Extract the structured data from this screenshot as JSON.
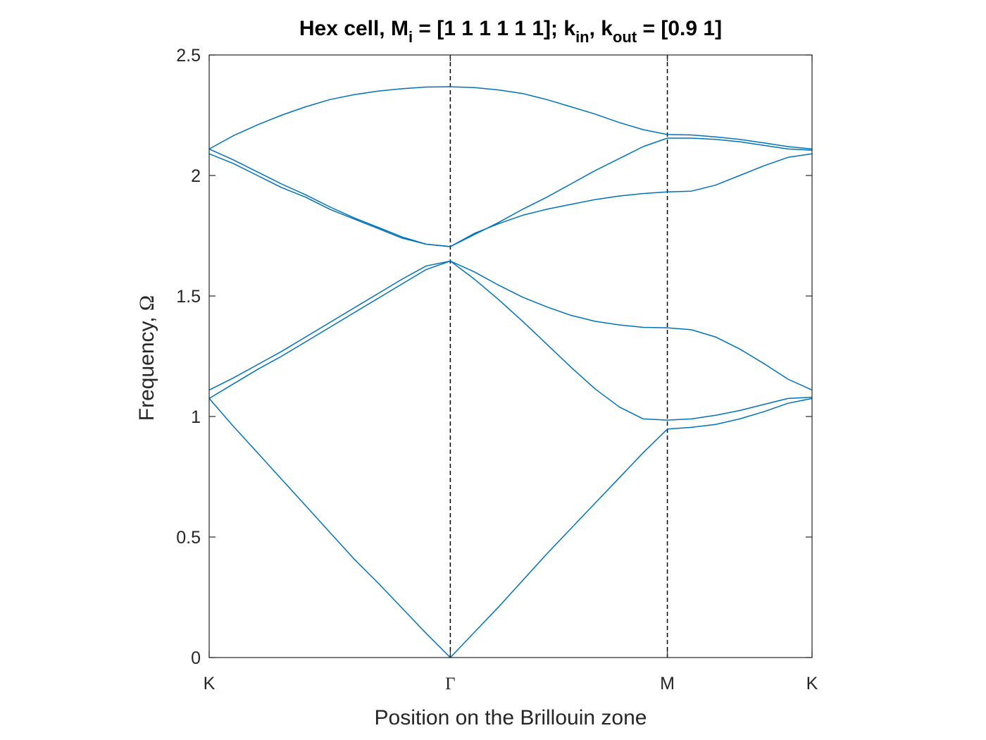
{
  "chart_data": {
    "type": "line",
    "title": {
      "main": "Hex cell, M",
      "sub_i": "i",
      "mid": " = [1 1 1 1 1 1]; k",
      "sub_in": "in",
      "comma": ", k",
      "sub_out": "out",
      "tail": " = [0.9 1]"
    },
    "xlabel": "Position on the Brillouin zone",
    "ylabel": {
      "text": "Frequency, ",
      "symbol": "Ω"
    },
    "xlim": [
      0,
      2.5
    ],
    "ylim": [
      0,
      2.5
    ],
    "yticks": [
      0,
      0.5,
      1,
      1.5,
      2,
      2.5
    ],
    "ytick_labels": [
      "0",
      "0.5",
      "1",
      "1.5",
      "2",
      "2.5"
    ],
    "xticks": [
      {
        "label": "K",
        "x": 0
      },
      {
        "label": "Γ",
        "x": 1.0
      },
      {
        "label": "M",
        "x": 1.9
      },
      {
        "label": "K",
        "x": 2.5
      }
    ],
    "vlines": [
      1.0,
      1.9
    ],
    "grid": false,
    "line_color": "#0072BD",
    "series": [
      {
        "values": [
          [
            0,
            1.075
          ],
          [
            0.1,
            0.96
          ],
          [
            0.2,
            0.85
          ],
          [
            0.3,
            0.74
          ],
          [
            0.4,
            0.63
          ],
          [
            0.5,
            0.52
          ],
          [
            0.6,
            0.41
          ],
          [
            0.7,
            0.31
          ],
          [
            0.8,
            0.205
          ],
          [
            0.9,
            0.1
          ],
          [
            1.0,
            0.0
          ],
          [
            1.1,
            0.105
          ],
          [
            1.2,
            0.21
          ],
          [
            1.3,
            0.32
          ],
          [
            1.4,
            0.43
          ],
          [
            1.5,
            0.535
          ],
          [
            1.6,
            0.64
          ],
          [
            1.7,
            0.745
          ],
          [
            1.8,
            0.85
          ],
          [
            1.9,
            0.948
          ],
          [
            2.0,
            0.955
          ],
          [
            2.1,
            0.967
          ],
          [
            2.2,
            0.99
          ],
          [
            2.3,
            1.02
          ],
          [
            2.4,
            1.055
          ],
          [
            2.5,
            1.075
          ]
        ]
      },
      {
        "values": [
          [
            0,
            1.075
          ],
          [
            0.1,
            1.135
          ],
          [
            0.2,
            1.195
          ],
          [
            0.3,
            1.25
          ],
          [
            0.4,
            1.31
          ],
          [
            0.5,
            1.37
          ],
          [
            0.6,
            1.43
          ],
          [
            0.7,
            1.49
          ],
          [
            0.8,
            1.55
          ],
          [
            0.9,
            1.61
          ],
          [
            1.0,
            1.645
          ],
          [
            1.1,
            1.57
          ],
          [
            1.2,
            1.485
          ],
          [
            1.3,
            1.395
          ],
          [
            1.4,
            1.3
          ],
          [
            1.5,
            1.205
          ],
          [
            1.6,
            1.115
          ],
          [
            1.7,
            1.04
          ],
          [
            1.8,
            0.99
          ],
          [
            1.9,
            0.985
          ],
          [
            2.0,
            0.99
          ],
          [
            2.1,
            1.005
          ],
          [
            2.2,
            1.025
          ],
          [
            2.3,
            1.05
          ],
          [
            2.4,
            1.075
          ],
          [
            2.5,
            1.08
          ]
        ]
      },
      {
        "values": [
          [
            0,
            1.11
          ],
          [
            0.1,
            1.16
          ],
          [
            0.2,
            1.215
          ],
          [
            0.3,
            1.27
          ],
          [
            0.4,
            1.33
          ],
          [
            0.5,
            1.39
          ],
          [
            0.6,
            1.45
          ],
          [
            0.7,
            1.51
          ],
          [
            0.8,
            1.57
          ],
          [
            0.9,
            1.625
          ],
          [
            1.0,
            1.645
          ],
          [
            1.1,
            1.6
          ],
          [
            1.2,
            1.545
          ],
          [
            1.3,
            1.495
          ],
          [
            1.4,
            1.455
          ],
          [
            1.5,
            1.42
          ],
          [
            1.6,
            1.395
          ],
          [
            1.7,
            1.38
          ],
          [
            1.8,
            1.37
          ],
          [
            1.9,
            1.368
          ],
          [
            2.0,
            1.36
          ],
          [
            2.1,
            1.33
          ],
          [
            2.2,
            1.28
          ],
          [
            2.3,
            1.22
          ],
          [
            2.4,
            1.155
          ],
          [
            2.5,
            1.11
          ]
        ]
      },
      {
        "values": [
          [
            0,
            2.09
          ],
          [
            0.1,
            2.05
          ],
          [
            0.2,
            2.0
          ],
          [
            0.3,
            1.95
          ],
          [
            0.4,
            1.91
          ],
          [
            0.5,
            1.86
          ],
          [
            0.6,
            1.82
          ],
          [
            0.7,
            1.78
          ],
          [
            0.8,
            1.74
          ],
          [
            0.9,
            1.715
          ],
          [
            1.0,
            1.705
          ],
          [
            1.1,
            1.76
          ],
          [
            1.2,
            1.8
          ],
          [
            1.3,
            1.835
          ],
          [
            1.4,
            1.86
          ],
          [
            1.5,
            1.88
          ],
          [
            1.6,
            1.9
          ],
          [
            1.7,
            1.915
          ],
          [
            1.8,
            1.925
          ],
          [
            1.9,
            1.932
          ],
          [
            2.0,
            1.935
          ],
          [
            2.1,
            1.96
          ],
          [
            2.2,
            2.0
          ],
          [
            2.3,
            2.04
          ],
          [
            2.4,
            2.075
          ],
          [
            2.5,
            2.09
          ]
        ]
      },
      {
        "values": [
          [
            0,
            2.11
          ],
          [
            0.1,
            2.065
          ],
          [
            0.2,
            2.015
          ],
          [
            0.3,
            1.965
          ],
          [
            0.4,
            1.92
          ],
          [
            0.5,
            1.87
          ],
          [
            0.6,
            1.825
          ],
          [
            0.7,
            1.785
          ],
          [
            0.8,
            1.745
          ],
          [
            0.9,
            1.715
          ],
          [
            1.0,
            1.705
          ],
          [
            1.1,
            1.755
          ],
          [
            1.2,
            1.805
          ],
          [
            1.3,
            1.86
          ],
          [
            1.4,
            1.91
          ],
          [
            1.5,
            1.965
          ],
          [
            1.6,
            2.02
          ],
          [
            1.7,
            2.07
          ],
          [
            1.8,
            2.12
          ],
          [
            1.9,
            2.155
          ],
          [
            2.0,
            2.155
          ],
          [
            2.1,
            2.15
          ],
          [
            2.2,
            2.14
          ],
          [
            2.3,
            2.125
          ],
          [
            2.4,
            2.11
          ],
          [
            2.5,
            2.105
          ]
        ]
      },
      {
        "values": [
          [
            0,
            2.11
          ],
          [
            0.1,
            2.165
          ],
          [
            0.2,
            2.21
          ],
          [
            0.3,
            2.25
          ],
          [
            0.4,
            2.285
          ],
          [
            0.5,
            2.315
          ],
          [
            0.6,
            2.335
          ],
          [
            0.7,
            2.35
          ],
          [
            0.8,
            2.36
          ],
          [
            0.9,
            2.367
          ],
          [
            1.0,
            2.368
          ],
          [
            1.1,
            2.365
          ],
          [
            1.2,
            2.355
          ],
          [
            1.3,
            2.34
          ],
          [
            1.4,
            2.315
          ],
          [
            1.5,
            2.285
          ],
          [
            1.6,
            2.255
          ],
          [
            1.7,
            2.22
          ],
          [
            1.8,
            2.19
          ],
          [
            1.9,
            2.17
          ],
          [
            2.0,
            2.168
          ],
          [
            2.1,
            2.16
          ],
          [
            2.2,
            2.15
          ],
          [
            2.3,
            2.135
          ],
          [
            2.4,
            2.12
          ],
          [
            2.5,
            2.11
          ]
        ]
      }
    ]
  }
}
